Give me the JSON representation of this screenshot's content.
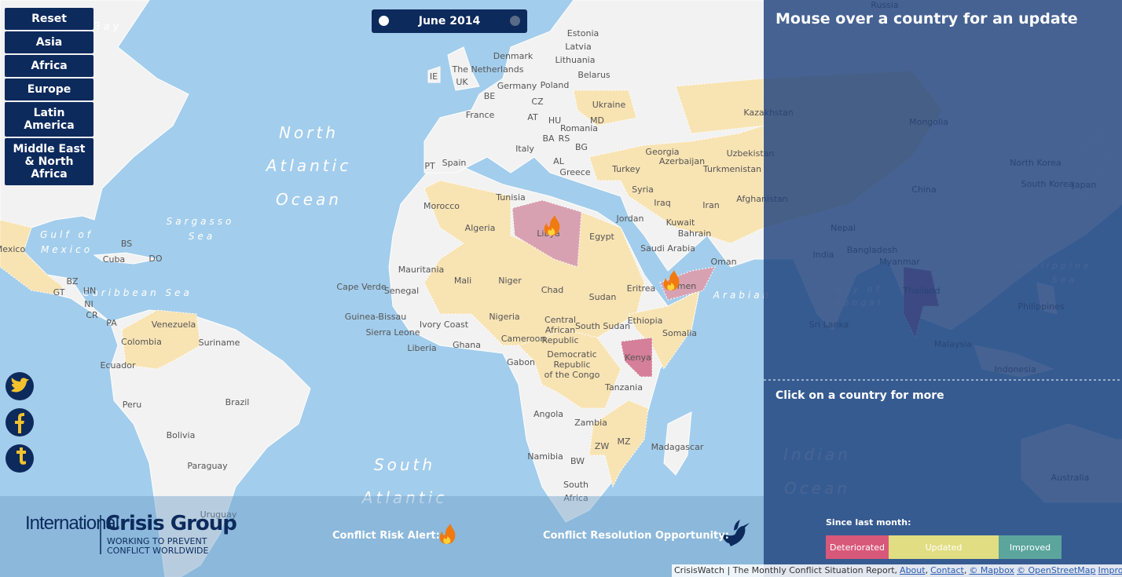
{
  "nav": {
    "buttons": [
      "Reset",
      "Asia",
      "Africa",
      "Europe",
      "Latin America",
      "Middle East & North Africa"
    ]
  },
  "date_control": {
    "label": "June 2014"
  },
  "panel": {
    "title": "Mouse over a country for an update",
    "subtitle": "Click on a country for more"
  },
  "map": {
    "ocean_labels": [
      "Bay",
      "North",
      "Atlantic",
      "Ocean",
      "Gulf of",
      "Mexico",
      "Sargasso",
      "Sea",
      "Caribbean Sea",
      "Arabian",
      "South",
      "Atlantic",
      "Indian",
      "Ocean",
      "Bay of",
      "Bengal",
      "Philippine",
      "Sea"
    ],
    "country_labels": [
      "Estonia",
      "Latvia",
      "Lithuania",
      "Denmark",
      "The Netherlands",
      "IE",
      "UK",
      "Belarus",
      "Germany",
      "Poland",
      "BE",
      "CZ",
      "Ukraine",
      "Kazakhstan",
      "France",
      "AT",
      "HU",
      "MD",
      "Romania",
      "BA",
      "RS",
      "BG",
      "Georgia",
      "Azerbaijan",
      "Uzbekistan",
      "Turkmenistan",
      "Italy",
      "PT",
      "Spain",
      "AL",
      "Greece",
      "Turkey",
      "Tunisia",
      "Syria",
      "Iraq",
      "Iran",
      "Afghanistan",
      "Morocco",
      "Algeria",
      "Libya",
      "Egypt",
      "Jordan",
      "Kuwait",
      "Bahrain",
      "Saudi Arabia",
      "Oman",
      "Mauritania",
      "Mali",
      "Niger",
      "Chad",
      "Sudan",
      "Eritrea",
      "Yemen",
      "Cape Verde",
      "Senegal",
      "Guinea-Bissau",
      "Sierra Leone",
      "Liberia",
      "Ivory Coast",
      "Ghana",
      "Nigeria",
      "Central",
      "African",
      "Republic",
      "South Sudan",
      "Ethiopia",
      "Somalia",
      "Cameroon",
      "Gabon",
      "Democratic",
      "Republic",
      "of the Congo",
      "Kenya",
      "Tanzania",
      "Angola",
      "Zambia",
      "ZW",
      "MZ",
      "Madagascar",
      "Namibia",
      "BW",
      "South",
      "Africa",
      "Mexico",
      "BS",
      "Cuba",
      "DO",
      "BZ",
      "GT",
      "HN",
      "NI",
      "CR",
      "PA",
      "Venezuela",
      "Colombia",
      "Suriname",
      "Ecuador",
      "Peru",
      "Brazil",
      "Bolivia",
      "Paraguay",
      "Uruguay",
      "Russia",
      "Mongolia",
      "China",
      "North Korea",
      "South Korea",
      "Japan",
      "Nepal",
      "Bangladesh",
      "India",
      "Myanmar",
      "Thailand",
      "Philippines",
      "Sri Lanka",
      "Malaysia",
      "Indonesia",
      "Australia"
    ]
  },
  "legend": {
    "risk_label": "Conflict Risk Alert:",
    "opportunity_label": "Conflict Resolution Opportunity:",
    "since_label": "Since last month:",
    "items": [
      "Deteriorated",
      "Updated",
      "Improved"
    ]
  },
  "logo": {
    "line1": "International",
    "line2": "Crisis Group",
    "tagline1": "WORKING TO PREVENT",
    "tagline2": "CONFLICT WORLDWIDE"
  },
  "footer": {
    "text": "CrisisWatch | The Monthly Conflict Situation Report,",
    "links": [
      "About",
      "Contact",
      "© Mapbox",
      "© OpenStreetMap",
      "Improve this map"
    ]
  }
}
